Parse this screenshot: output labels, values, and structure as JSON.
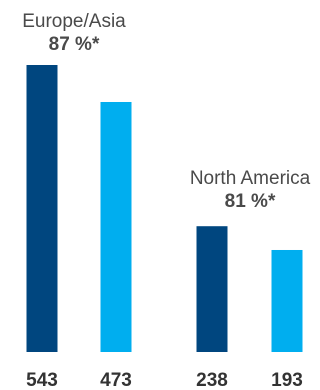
{
  "colors": {
    "dark_blue": "#00467f",
    "light_blue": "#00aeef",
    "text": "#4a4a4a"
  },
  "chart_data": {
    "type": "bar",
    "title": "",
    "xlabel": "",
    "ylabel": "",
    "ylim": [
      0,
      543
    ],
    "grid": false,
    "groups": [
      {
        "title": "Europe/Asia",
        "percent": "87 %*",
        "values": [
          543,
          473
        ],
        "labels": [
          "543",
          "473"
        ],
        "colors": [
          "#00467f",
          "#00aeef"
        ]
      },
      {
        "title": "North America",
        "percent": "81 %*",
        "values": [
          238,
          193
        ],
        "labels": [
          "238",
          "193"
        ],
        "colors": [
          "#00467f",
          "#00aeef"
        ]
      }
    ]
  }
}
